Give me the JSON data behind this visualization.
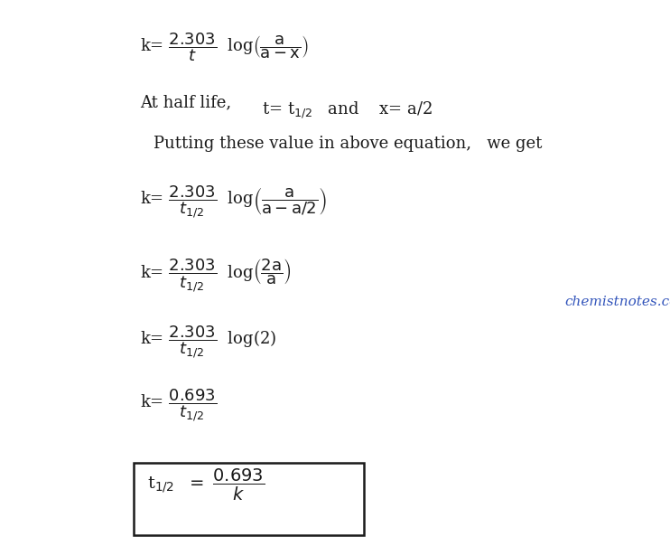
{
  "bg_color": "#ffffff",
  "text_color": "#1a1a1a",
  "watermark_color": "#3355bb",
  "watermark_text": "chemistnotes.com",
  "figsize": [
    7.42,
    6.04
  ],
  "dpi": 100,
  "fs": 13
}
